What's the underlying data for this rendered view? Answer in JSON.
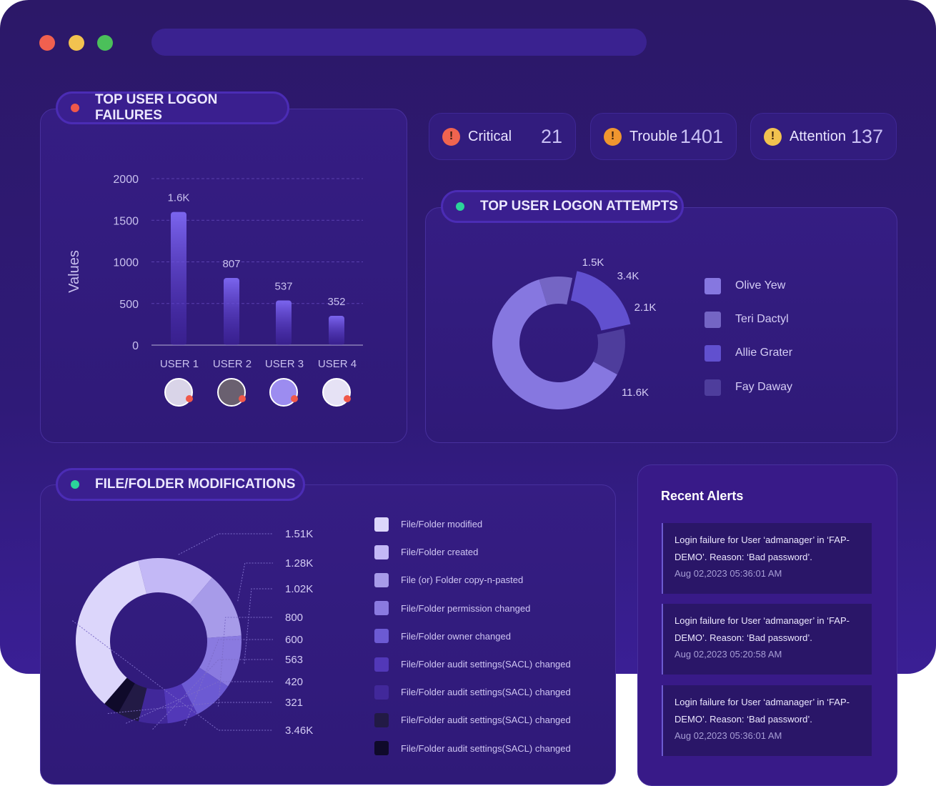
{
  "window": {
    "controls": [
      "close",
      "minimize",
      "maximize"
    ],
    "colors": {
      "close": "#f0604f",
      "minimize": "#f2c24f",
      "maximize": "#4bc05a"
    }
  },
  "status": [
    {
      "label": "Critical",
      "value": "21",
      "color": "#f0644f",
      "icon": "exclamation-icon"
    },
    {
      "label": "Trouble",
      "value": "1401",
      "color": "#f0962f",
      "icon": "exclamation-icon"
    },
    {
      "label": "Attention",
      "value": "137",
      "color": "#f2c24f",
      "icon": "exclamation-icon"
    }
  ],
  "failures": {
    "title": "TOP USER LOGON FAILURES",
    "dot_color": "#f0584a"
  },
  "attempts": {
    "title": "TOP USER LOGON ATTEMPTS",
    "dot_color": "#2bd39a"
  },
  "files": {
    "title": "FILE/FOLDER MODIFICATIONS",
    "dot_color": "#2bd39a"
  },
  "alerts": {
    "title": "Recent Alerts",
    "items": [
      {
        "message": "Login failure for User ‘admanager’ in ‘FAP-DEMO’. Reason: ‘Bad password’.",
        "time": "Aug 02,2023 05:36:01 AM"
      },
      {
        "message": "Login failure for User ‘admanager’ in ‘FAP-DEMO’. Reason: ‘Bad password’.",
        "time": "Aug 02,2023 05:20:58 AM"
      },
      {
        "message": "Login failure for User ‘admanager’ in ‘FAP-DEMO’. Reason: ‘Bad password’.",
        "time": "Aug 02,2023 05:36:01 AM"
      }
    ]
  },
  "chart_data": [
    {
      "type": "bar",
      "ylabel": "Values",
      "xlabel": "",
      "ylim": [
        0,
        2000
      ],
      "yticks": [
        "0",
        "500",
        "1000",
        "1500",
        "2000"
      ],
      "grid": true,
      "categories": [
        "USER 1",
        "USER 2",
        "USER 3",
        "USER 4"
      ],
      "values": [
        1600,
        807,
        537,
        352
      ],
      "data_labels": [
        "1.6K",
        "807",
        "537",
        "352"
      ]
    },
    {
      "type": "pie",
      "donut": true,
      "legend": "right",
      "slices": [
        {
          "name": "Olive Yew",
          "value": 11600,
          "label": "11.6K",
          "color": "#8677e0"
        },
        {
          "name": "Teri Dactyl",
          "value": 1500,
          "label": "1.5K",
          "color": "#7465c4"
        },
        {
          "name": "Allie Grater",
          "value": 3400,
          "label": "3.4K",
          "color": "#6150cf"
        },
        {
          "name": "Fay Daway",
          "value": 2100,
          "label": "2.1K",
          "color": "#4e3d9c"
        }
      ]
    },
    {
      "type": "pie",
      "donut": true,
      "legend": "right",
      "slices": [
        {
          "name": "File/Folder created",
          "value": 1510,
          "label": "1.51K",
          "color": "#c3b8f6"
        },
        {
          "name": "File (or) Folder copy-n-pasted",
          "value": 1280,
          "label": "1.28K",
          "color": "#a79be9"
        },
        {
          "name": "File/Folder permission changed",
          "value": 1020,
          "label": "1.02K",
          "color": "#8a7ae0"
        },
        {
          "name": "File/Folder owner changed",
          "value": 800,
          "label": "800",
          "color": "#6c5ad3"
        },
        {
          "name": "File/Folder audit settings(SACL) changed",
          "value": 600,
          "label": "600",
          "color": "#5238b8"
        },
        {
          "name": "File/Folder audit settings(SACL) changed",
          "value": 563,
          "label": "563",
          "color": "#41289a"
        },
        {
          "name": "File/Folder audit settings(SACL) changed",
          "value": 420,
          "label": "420",
          "color": "#221a45"
        },
        {
          "name": "File/Folder audit settings(SACL) changed",
          "value": 321,
          "label": "321",
          "color": "#0f0a2a"
        },
        {
          "name": "File/Folder modified",
          "value": 3460,
          "label": "3.46K",
          "color": "#dcd6fb"
        }
      ],
      "legend_order": [
        "File/Folder modified",
        "File/Folder created",
        "File (or) Folder copy-n-pasted",
        "File/Folder permission changed",
        "File/Folder owner changed",
        "File/Folder audit settings(SACL) changed",
        "File/Folder audit settings(SACL) changed",
        "File/Folder audit settings(SACL) changed",
        "File/Folder audit settings(SACL) changed"
      ],
      "legend_colors": [
        "#dcd6fb",
        "#c3b8f6",
        "#a79be9",
        "#8a7ae0",
        "#6c5ad3",
        "#5238b8",
        "#41289a",
        "#221a45",
        "#0f0a2a"
      ]
    }
  ]
}
